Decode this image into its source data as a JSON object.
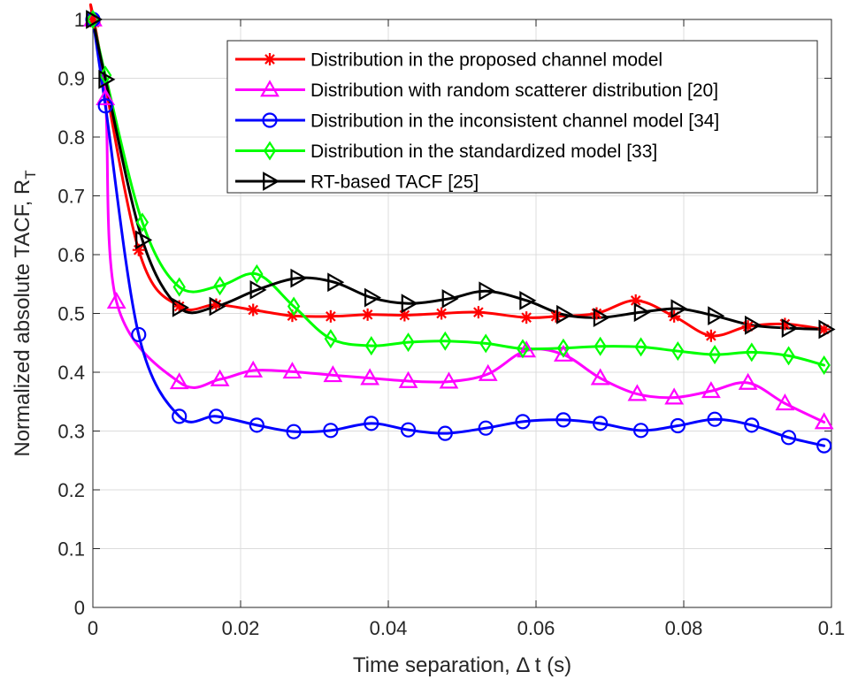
{
  "chart_data": {
    "type": "line",
    "title": "",
    "xlabel": "Time separation, Δ t (s)",
    "ylabel_main": "Normalized absolute TACF, R",
    "ylabel_sub": "T",
    "xlim": [
      0,
      0.1
    ],
    "ylim": [
      0,
      1
    ],
    "grid": true,
    "legend_position": "top-right",
    "xticks": [
      0,
      0.02,
      0.04,
      0.06,
      0.08,
      0.1
    ],
    "xtick_labels": [
      "0",
      "0.02",
      "0.04",
      "0.06",
      "0.08",
      "0.1"
    ],
    "yticks": [
      0,
      0.1,
      0.2,
      0.3,
      0.4,
      0.5,
      0.6,
      0.7,
      0.8,
      0.9,
      1
    ],
    "ytick_labels": [
      "0",
      "0.1",
      "0.2",
      "0.3",
      "0.4",
      "0.5",
      "0.6",
      "0.7",
      "0.8",
      "0.9",
      "1"
    ],
    "series": [
      {
        "name": "Distribution in the proposed channel model",
        "color": "#ff0000",
        "marker": "asterisk",
        "x": [
          0,
          0.0002,
          0.0062,
          0.0117,
          0.0167,
          0.0217,
          0.027,
          0.0322,
          0.0372,
          0.0422,
          0.0472,
          0.0522,
          0.0587,
          0.0627,
          0.0682,
          0.0735,
          0.0787,
          0.0837,
          0.0887,
          0.0937,
          0.099
        ],
        "y": [
          1,
          0.995,
          0.608,
          0.512,
          0.515,
          0.506,
          0.496,
          0.495,
          0.498,
          0.497,
          0.5,
          0.502,
          0.493,
          0.495,
          0.5,
          0.522,
          0.495,
          0.462,
          0.478,
          0.482,
          0.473
        ]
      },
      {
        "name": "Distribution with random scatterer distribution [20]",
        "color": "#ff00ff",
        "marker": "triangle",
        "x": [
          0,
          0.0017,
          0.0032,
          0.0117,
          0.0172,
          0.0217,
          0.027,
          0.0325,
          0.0375,
          0.0427,
          0.0482,
          0.0535,
          0.0587,
          0.0637,
          0.0687,
          0.0737,
          0.0787,
          0.0837,
          0.0887,
          0.0937,
          0.099
        ],
        "y": [
          1,
          0.866,
          0.52,
          0.383,
          0.388,
          0.403,
          0.401,
          0.395,
          0.39,
          0.385,
          0.384,
          0.397,
          0.437,
          0.43,
          0.39,
          0.363,
          0.357,
          0.368,
          0.382,
          0.347,
          0.315
        ]
      },
      {
        "name": "Distribution in the inconsistent channel model [34]",
        "color": "#0000ff",
        "marker": "circle",
        "x": [
          0,
          0.0017,
          0.0062,
          0.0117,
          0.0167,
          0.0222,
          0.0272,
          0.0322,
          0.0377,
          0.0427,
          0.0477,
          0.0532,
          0.0582,
          0.0637,
          0.0687,
          0.0742,
          0.0792,
          0.0842,
          0.0892,
          0.0942,
          0.099
        ],
        "y": [
          1,
          0.853,
          0.464,
          0.325,
          0.325,
          0.31,
          0.299,
          0.301,
          0.313,
          0.302,
          0.296,
          0.305,
          0.316,
          0.319,
          0.313,
          0.301,
          0.309,
          0.32,
          0.31,
          0.289,
          0.275
        ]
      },
      {
        "name": "Distribution in the standardized model [33]",
        "color": "#00ff00",
        "marker": "diamond",
        "x": [
          0,
          0.0017,
          0.0067,
          0.0117,
          0.0172,
          0.0222,
          0.0272,
          0.0322,
          0.0377,
          0.0427,
          0.0477,
          0.0532,
          0.0582,
          0.0637,
          0.0687,
          0.0742,
          0.0792,
          0.0842,
          0.0892,
          0.0942,
          0.099
        ],
        "y": [
          1,
          0.905,
          0.655,
          0.545,
          0.547,
          0.567,
          0.512,
          0.457,
          0.445,
          0.451,
          0.453,
          0.449,
          0.44,
          0.441,
          0.444,
          0.443,
          0.436,
          0.43,
          0.434,
          0.428,
          0.412
        ]
      },
      {
        "name": "RT-based TACF [25]",
        "color": "#000000",
        "marker": "triangle-right",
        "x": [
          0,
          0.0017,
          0.0067,
          0.0117,
          0.0167,
          0.0222,
          0.0277,
          0.0327,
          0.0377,
          0.0427,
          0.0482,
          0.0532,
          0.0587,
          0.0637,
          0.0687,
          0.0742,
          0.0792,
          0.0842,
          0.0892,
          0.0942,
          0.0992
        ],
        "y": [
          1,
          0.898,
          0.625,
          0.51,
          0.512,
          0.54,
          0.56,
          0.553,
          0.527,
          0.517,
          0.525,
          0.538,
          0.522,
          0.498,
          0.493,
          0.502,
          0.508,
          0.496,
          0.48,
          0.475,
          0.473
        ]
      }
    ]
  }
}
